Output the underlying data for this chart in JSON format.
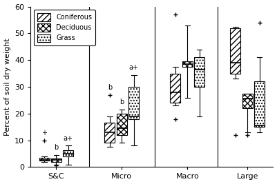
{
  "title": "",
  "ylabel": "Percent of soil dry weight",
  "ylim": [
    0,
    60
  ],
  "yticks": [
    0,
    10,
    20,
    30,
    40,
    50,
    60
  ],
  "groups": [
    "S&C",
    "Micro",
    "Macro",
    "Large"
  ],
  "vegetation": [
    "Coniferous",
    "Deciduous",
    "Grass"
  ],
  "hatch_patterns": [
    "////",
    "xxxx",
    "...."
  ],
  "box_data": {
    "S&C": {
      "Coniferous": {
        "q1": 2.3,
        "median": 2.8,
        "q3": 3.4,
        "whislo": 2.0,
        "whishi": 4.0,
        "fliers": [
          10.0
        ]
      },
      "Deciduous": {
        "q1": 2.0,
        "median": 2.7,
        "q3": 3.3,
        "whislo": 1.0,
        "whishi": 4.5,
        "fliers": [
          0.5
        ]
      },
      "Grass": {
        "q1": 4.0,
        "median": 5.0,
        "q3": 6.2,
        "whislo": 1.0,
        "whishi": 8.0,
        "fliers": []
      }
    },
    "Micro": {
      "Coniferous": {
        "q1": 9.0,
        "median": 13.0,
        "q3": 16.5,
        "whislo": 7.5,
        "whishi": 19.0,
        "fliers": [
          27.0
        ]
      },
      "Deciduous": {
        "q1": 12.0,
        "median": 14.5,
        "q3": 20.0,
        "whislo": 9.0,
        "whishi": 21.5,
        "fliers": []
      },
      "Grass": {
        "q1": 18.0,
        "median": 19.0,
        "q3": 30.0,
        "whislo": 8.0,
        "whishi": 34.5,
        "fliers": []
      }
    },
    "Macro": {
      "Coniferous": {
        "q1": 24.0,
        "median": 28.0,
        "q3": 35.0,
        "whislo": 23.0,
        "whishi": 37.5,
        "fliers": [
          18.0,
          57.0
        ]
      },
      "Deciduous": {
        "q1": 37.5,
        "median": 38.5,
        "q3": 39.5,
        "whislo": 26.0,
        "whishi": 53.0,
        "fliers": []
      },
      "Grass": {
        "q1": 30.0,
        "median": 36.5,
        "q3": 41.0,
        "whislo": 19.0,
        "whishi": 44.0,
        "fliers": []
      }
    },
    "Large": {
      "Coniferous": {
        "q1": 35.0,
        "median": 39.0,
        "q3": 52.0,
        "whislo": 33.0,
        "whishi": 52.5,
        "fliers": [
          12.0
        ]
      },
      "Deciduous": {
        "q1": 22.0,
        "median": 25.5,
        "q3": 27.5,
        "whislo": 13.0,
        "whishi": 27.5,
        "fliers": [
          12.0
        ]
      },
      "Grass": {
        "q1": 15.0,
        "median": 15.5,
        "q3": 32.0,
        "whislo": 13.0,
        "whishi": 41.0,
        "fliers": [
          54.0
        ]
      }
    }
  },
  "annotations": {
    "S&C": {
      "Coniferous": "+",
      "Deciduous": "b",
      "Grass": "a+"
    },
    "Micro": {
      "Coniferous": "b",
      "Deciduous": "b",
      "Grass": "a+"
    },
    "Macro": {},
    "Large": {}
  },
  "group_centers": [
    0.55,
    1.75,
    2.95,
    4.05
  ],
  "veg_offsets": [
    -0.22,
    0.0,
    0.22
  ],
  "box_width": 0.19,
  "background_color": "#ffffff",
  "box_facecolor": "white",
  "linecolor": "black"
}
